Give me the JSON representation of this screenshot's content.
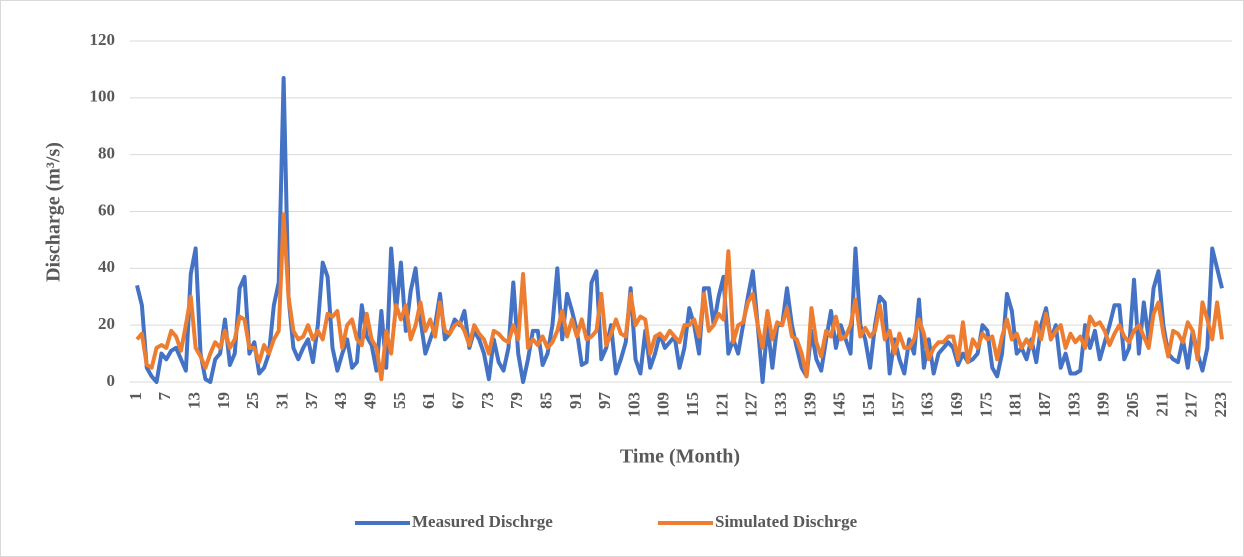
{
  "chart_data": {
    "type": "line",
    "x_label": "Time (Month)",
    "y_label": "Discharge (m³/s)",
    "x": [
      1,
      2,
      3,
      4,
      5,
      6,
      7,
      8,
      9,
      10,
      11,
      12,
      13,
      14,
      15,
      16,
      17,
      18,
      19,
      20,
      21,
      22,
      23,
      24,
      25,
      26,
      27,
      28,
      29,
      30,
      31,
      32,
      33,
      34,
      35,
      36,
      37,
      38,
      39,
      40,
      41,
      42,
      43,
      44,
      45,
      46,
      47,
      48,
      49,
      50,
      51,
      52,
      53,
      54,
      55,
      56,
      57,
      58,
      59,
      60,
      61,
      62,
      63,
      64,
      65,
      66,
      67,
      68,
      69,
      70,
      71,
      72,
      73,
      74,
      75,
      76,
      77,
      78,
      79,
      80,
      81,
      82,
      83,
      84,
      85,
      86,
      87,
      88,
      89,
      90,
      91,
      92,
      93,
      94,
      95,
      96,
      97,
      98,
      99,
      100,
      101,
      102,
      103,
      104,
      105,
      106,
      107,
      108,
      109,
      110,
      111,
      112,
      113,
      114,
      115,
      116,
      117,
      118,
      119,
      120,
      121,
      122,
      123,
      124,
      125,
      126,
      127,
      128,
      129,
      130,
      131,
      132,
      133,
      134,
      135,
      136,
      137,
      138,
      139,
      140,
      141,
      142,
      143,
      144,
      145,
      146,
      147,
      148,
      149,
      150,
      151,
      152,
      153,
      154,
      155,
      156,
      157,
      158,
      159,
      160,
      161,
      162,
      163,
      164,
      165,
      166,
      167,
      168,
      169,
      170,
      171,
      172,
      173,
      174,
      175,
      176,
      177,
      178,
      179,
      180,
      181,
      182,
      183,
      184,
      185,
      186,
      187,
      188,
      189,
      190,
      191,
      192,
      193,
      194,
      195,
      196,
      197,
      198,
      199,
      200,
      201,
      202,
      203,
      204,
      205,
      206,
      207,
      208,
      209,
      210,
      211,
      212,
      213,
      214,
      215,
      216,
      217,
      218,
      219,
      220,
      221,
      222,
      223
    ],
    "series": [
      {
        "name": "Measured Dischrge",
        "color": "#4472c4",
        "values": [
          34,
          27,
          5,
          2,
          0,
          10,
          8,
          11,
          12,
          8,
          4,
          38,
          47,
          10,
          1,
          0,
          8,
          10,
          22,
          6,
          10,
          33,
          37,
          10,
          14,
          3,
          5,
          10,
          27,
          35,
          107,
          30,
          12,
          8,
          12,
          15,
          7,
          20,
          42,
          37,
          12,
          4,
          10,
          15,
          5,
          7,
          27,
          16,
          13,
          4,
          25,
          5,
          47,
          25,
          42,
          18,
          32,
          40,
          22,
          10,
          15,
          20,
          31,
          15,
          17,
          22,
          20,
          25,
          12,
          18,
          15,
          10,
          1,
          15,
          7,
          4,
          12,
          35,
          10,
          0,
          8,
          18,
          18,
          6,
          10,
          20,
          40,
          15,
          31,
          25,
          18,
          6,
          7,
          35,
          39,
          8,
          12,
          20,
          3,
          8,
          14,
          33,
          8,
          3,
          18,
          5,
          10,
          17,
          12,
          14,
          16,
          5,
          12,
          26,
          20,
          10,
          33,
          33,
          20,
          30,
          37,
          10,
          15,
          10,
          20,
          30,
          39,
          20,
          0,
          20,
          5,
          20,
          20,
          33,
          20,
          12,
          5,
          2,
          18,
          8,
          4,
          15,
          25,
          12,
          20,
          15,
          10,
          47,
          20,
          15,
          5,
          20,
          30,
          28,
          3,
          15,
          8,
          3,
          15,
          10,
          29,
          5,
          15,
          3,
          10,
          12,
          14,
          12,
          6,
          10,
          7,
          8,
          10,
          20,
          18,
          5,
          2,
          10,
          31,
          25,
          10,
          12,
          8,
          15,
          7,
          20,
          26,
          15,
          20,
          5,
          10,
          3,
          3,
          4,
          20,
          12,
          18,
          8,
          14,
          20,
          27,
          27,
          8,
          12,
          36,
          10,
          28,
          15,
          33,
          39,
          20,
          10,
          8,
          7,
          15,
          5,
          18,
          10,
          4,
          12,
          47,
          40,
          33
        ]
      },
      {
        "name": "Simulated Dischrge",
        "color": "#ed7d31",
        "values": [
          15,
          17,
          6,
          5,
          12,
          13,
          12,
          18,
          16,
          11,
          20,
          30,
          12,
          9,
          5,
          10,
          14,
          12,
          18,
          12,
          15,
          23,
          22,
          12,
          12,
          7,
          13,
          10,
          15,
          18,
          59,
          30,
          18,
          15,
          16,
          20,
          15,
          18,
          15,
          24,
          23,
          25,
          12,
          20,
          22,
          15,
          13,
          24,
          15,
          12,
          1,
          18,
          10,
          27,
          22,
          27,
          15,
          20,
          28,
          18,
          22,
          16,
          28,
          18,
          17,
          20,
          21,
          18,
          13,
          20,
          17,
          15,
          10,
          18,
          17,
          15,
          14,
          20,
          15,
          38,
          12,
          15,
          13,
          16,
          12,
          14,
          18,
          25,
          16,
          22,
          16,
          22,
          15,
          16,
          18,
          31,
          13,
          17,
          22,
          17,
          16,
          31,
          20,
          23,
          22,
          10,
          16,
          17,
          15,
          18,
          16,
          14,
          20,
          20,
          22,
          16,
          31,
          18,
          20,
          24,
          22,
          46,
          14,
          20,
          21,
          28,
          31,
          20,
          12,
          25,
          15,
          21,
          20,
          26,
          16,
          15,
          10,
          2,
          26,
          14,
          9,
          18,
          16,
          23,
          15,
          16,
          20,
          29,
          16,
          19,
          16,
          18,
          27,
          15,
          18,
          10,
          17,
          12,
          12,
          15,
          22,
          17,
          8,
          12,
          14,
          14,
          16,
          16,
          8,
          21,
          7,
          15,
          12,
          17,
          15,
          16,
          8,
          16,
          22,
          15,
          17,
          12,
          15,
          12,
          21,
          15,
          24,
          15,
          18,
          20,
          12,
          17,
          14,
          16,
          12,
          23,
          20,
          21,
          18,
          13,
          17,
          20,
          16,
          14,
          18,
          20,
          16,
          12,
          24,
          28,
          17,
          9,
          18,
          17,
          14,
          21,
          18,
          8,
          28,
          22,
          15,
          28,
          15
        ]
      }
    ],
    "xlim": [
      1,
      223
    ],
    "xticks": [
      1,
      7,
      13,
      19,
      25,
      31,
      37,
      43,
      49,
      55,
      61,
      67,
      73,
      79,
      85,
      91,
      97,
      103,
      109,
      115,
      121,
      127,
      133,
      139,
      145,
      151,
      157,
      163,
      169,
      175,
      181,
      187,
      193,
      199,
      205,
      211,
      217,
      223
    ],
    "ylim": [
      0,
      120
    ],
    "yticks": [
      0,
      20,
      40,
      60,
      80,
      100,
      120
    ],
    "grid": true,
    "legend": "bottom"
  }
}
